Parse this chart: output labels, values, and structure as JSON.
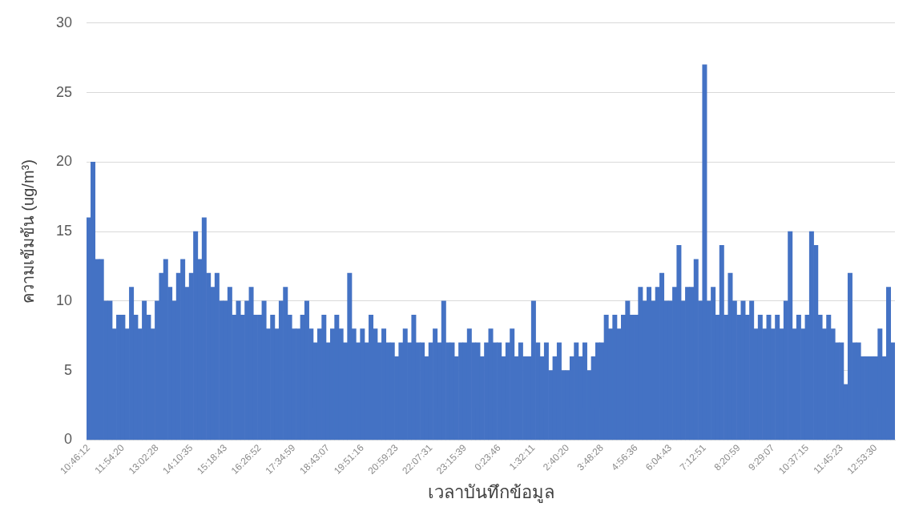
{
  "chart_data": {
    "type": "bar",
    "xlabel": "เวลาบันทึกข้อมูล",
    "ylabel": "ความเข้มข้น (ug/m³)",
    "categories": [
      "10:46:12",
      null,
      null,
      null,
      null,
      null,
      null,
      null,
      "11:54:20",
      null,
      null,
      null,
      null,
      null,
      null,
      null,
      "13:02:28",
      null,
      null,
      null,
      null,
      null,
      null,
      null,
      "14:10:35",
      null,
      null,
      null,
      null,
      null,
      null,
      null,
      "15:18:43",
      null,
      null,
      null,
      null,
      null,
      null,
      null,
      "16:26:52",
      null,
      null,
      null,
      null,
      null,
      null,
      null,
      "17:34:59",
      null,
      null,
      null,
      null,
      null,
      null,
      null,
      "18:43:07",
      null,
      null,
      null,
      null,
      null,
      null,
      null,
      "19:51:16",
      null,
      null,
      null,
      null,
      null,
      null,
      null,
      "20:59:23",
      null,
      null,
      null,
      null,
      null,
      null,
      null,
      "22:07:31",
      null,
      null,
      null,
      null,
      null,
      null,
      null,
      "23:15:39",
      null,
      null,
      null,
      null,
      null,
      null,
      null,
      "0:23:46",
      null,
      null,
      null,
      null,
      null,
      null,
      null,
      "1:32:11",
      null,
      null,
      null,
      null,
      null,
      null,
      null,
      "2:40:20",
      null,
      null,
      null,
      null,
      null,
      null,
      null,
      "3:48:28",
      null,
      null,
      null,
      null,
      null,
      null,
      null,
      "4:56:36",
      null,
      null,
      null,
      null,
      null,
      null,
      null,
      "6:04:43",
      null,
      null,
      null,
      null,
      null,
      null,
      null,
      "7:12:51",
      null,
      null,
      null,
      null,
      null,
      null,
      null,
      "8:20:59",
      null,
      null,
      null,
      null,
      null,
      null,
      null,
      "9:29:07",
      null,
      null,
      null,
      null,
      null,
      null,
      null,
      "10:37:15",
      null,
      null,
      null,
      null,
      null,
      null,
      null,
      "11:45:23",
      null,
      null,
      null,
      null,
      null,
      null,
      null,
      "12:53:30",
      null,
      null,
      null,
      null
    ],
    "values": [
      16,
      20,
      13,
      13,
      10,
      10,
      8,
      9,
      9,
      8,
      11,
      9,
      8,
      10,
      9,
      8,
      10,
      12,
      13,
      11,
      10,
      12,
      13,
      11,
      12,
      15,
      13,
      16,
      12,
      11,
      12,
      10,
      10,
      11,
      9,
      10,
      9,
      10,
      11,
      9,
      9,
      10,
      8,
      9,
      8,
      10,
      11,
      9,
      8,
      8,
      9,
      10,
      8,
      7,
      8,
      9,
      7,
      8,
      9,
      8,
      7,
      12,
      8,
      7,
      8,
      7,
      9,
      8,
      7,
      8,
      7,
      7,
      6,
      7,
      8,
      7,
      9,
      7,
      7,
      6,
      7,
      8,
      7,
      10,
      7,
      7,
      6,
      7,
      7,
      8,
      7,
      7,
      6,
      7,
      8,
      7,
      7,
      6,
      7,
      8,
      6,
      7,
      6,
      6,
      10,
      7,
      6,
      7,
      5,
      6,
      7,
      5,
      5,
      6,
      7,
      6,
      7,
      5,
      6,
      7,
      7,
      9,
      8,
      9,
      8,
      9,
      10,
      9,
      9,
      11,
      10,
      11,
      10,
      11,
      12,
      10,
      10,
      11,
      14,
      10,
      11,
      11,
      13,
      10,
      27,
      10,
      11,
      9,
      14,
      9,
      12,
      10,
      9,
      10,
      9,
      10,
      8,
      9,
      8,
      9,
      8,
      9,
      8,
      10,
      15,
      8,
      9,
      8,
      9,
      15,
      14,
      9,
      8,
      9,
      8,
      7,
      7,
      4,
      12,
      7,
      7,
      6,
      6,
      6,
      6,
      8,
      6,
      11,
      7
    ],
    "color": "#4472c4",
    "ylim": [
      0,
      30
    ],
    "yticks": [
      0,
      5,
      10,
      15,
      20,
      25,
      30
    ],
    "grid": "y",
    "legend": false
  }
}
